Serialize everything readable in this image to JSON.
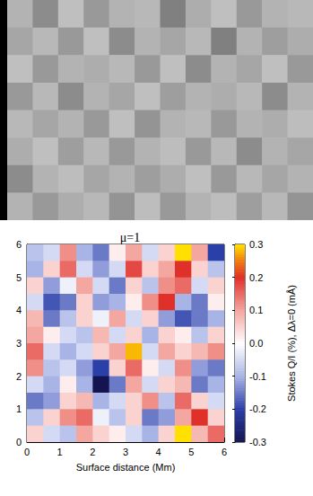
{
  "chart_data": [
    {
      "type": "image",
      "x": [
        0.5,
        1.5,
        2.5,
        3.5,
        4.5,
        5.5,
        6.5,
        7.5,
        8.5,
        9.5,
        10.5,
        11.5
      ],
      "y": [
        7.5,
        6.5,
        5.5,
        4.5,
        3.5,
        2.5,
        1.5,
        0.5
      ],
      "values": [
        [
          0.7,
          0.55,
          0.75,
          0.6,
          0.7,
          0.72,
          0.5,
          0.68,
          0.75,
          0.6,
          0.7,
          0.72
        ],
        [
          0.65,
          0.72,
          0.6,
          0.75,
          0.55,
          0.7,
          0.65,
          0.72,
          0.5,
          0.7,
          0.62,
          0.68
        ],
        [
          0.75,
          0.6,
          0.7,
          0.68,
          0.72,
          0.6,
          0.75,
          0.55,
          0.7,
          0.65,
          0.75,
          0.6
        ],
        [
          0.6,
          0.72,
          0.55,
          0.7,
          0.65,
          0.75,
          0.62,
          0.7,
          0.68,
          0.72,
          0.55,
          0.7
        ],
        [
          0.72,
          0.65,
          0.7,
          0.6,
          0.75,
          0.58,
          0.7,
          0.72,
          0.6,
          0.7,
          0.68,
          0.74
        ],
        [
          0.68,
          0.75,
          0.62,
          0.72,
          0.6,
          0.7,
          0.74,
          0.6,
          0.72,
          0.55,
          0.7,
          0.65
        ],
        [
          0.55,
          0.7,
          0.74,
          0.65,
          0.7,
          0.62,
          0.68,
          0.75,
          0.6,
          0.72,
          0.65,
          0.7
        ],
        [
          0.7,
          0.6,
          0.68,
          0.72,
          0.58,
          0.74,
          0.6,
          0.7,
          0.74,
          0.62,
          0.72,
          0.58
        ]
      ],
      "zlim": [
        0,
        1
      ],
      "xlim": [
        0,
        12
      ],
      "ylim": [
        0,
        8
      ],
      "tick_labels": false
    },
    {
      "type": "heatmap",
      "title": "μ=1",
      "x_label": "Surface distance (Mm)",
      "x": [
        0.25,
        0.75,
        1.25,
        1.75,
        2.25,
        2.75,
        3.25,
        3.75,
        4.25,
        4.75,
        5.25,
        5.75
      ],
      "y": [
        5.75,
        5.25,
        4.75,
        4.25,
        3.75,
        3.25,
        2.75,
        2.25,
        1.75,
        1.25,
        0.75,
        0.25
      ],
      "values": [
        [
          -0.08,
          -0.05,
          0.12,
          -0.1,
          -0.15,
          0.02,
          0.1,
          -0.05,
          0.05,
          0.3,
          0.1,
          -0.2
        ],
        [
          -0.1,
          0.05,
          0.15,
          -0.05,
          -0.12,
          -0.05,
          0.18,
          0.05,
          0.1,
          0.2,
          0.05,
          -0.08
        ],
        [
          0.05,
          -0.12,
          -0.02,
          0.1,
          -0.05,
          -0.15,
          0.05,
          -0.08,
          0.12,
          0.15,
          -0.05,
          0.05
        ],
        [
          -0.05,
          -0.18,
          -0.15,
          0.05,
          -0.12,
          -0.1,
          0.02,
          0.12,
          0.2,
          -0.1,
          -0.15,
          0.02
        ],
        [
          0.08,
          -0.15,
          -0.08,
          0.05,
          -0.02,
          0.1,
          -0.05,
          0.05,
          -0.12,
          -0.18,
          -0.15,
          -0.1
        ],
        [
          0.1,
          0.02,
          -0.05,
          -0.08,
          0.08,
          -0.05,
          0.05,
          -0.1,
          0.05,
          0.02,
          -0.08,
          0.05
        ],
        [
          0.15,
          -0.05,
          -0.1,
          -0.05,
          0.05,
          0.1,
          0.28,
          -0.05,
          0.1,
          0.05,
          0.08,
          0.12
        ],
        [
          0.12,
          -0.08,
          -0.05,
          -0.12,
          -0.2,
          0.05,
          0.15,
          0.02,
          -0.05,
          0.12,
          -0.12,
          -0.15
        ],
        [
          -0.05,
          -0.1,
          0.02,
          -0.1,
          -0.3,
          -0.15,
          0.1,
          -0.05,
          0.05,
          0.08,
          -0.15,
          -0.1
        ],
        [
          -0.15,
          -0.12,
          0.05,
          0.08,
          -0.1,
          -0.05,
          0.05,
          0.12,
          -0.08,
          0.15,
          0.05,
          -0.05
        ],
        [
          -0.08,
          0.05,
          0.12,
          0.15,
          -0.02,
          -0.08,
          0.05,
          -0.15,
          -0.12,
          0.1,
          0.2,
          0.05
        ],
        [
          0.05,
          -0.05,
          -0.08,
          0.1,
          0.05,
          0.02,
          -0.05,
          -0.1,
          0.05,
          0.3,
          0.08,
          0.15
        ]
      ],
      "xlim": [
        0,
        6
      ],
      "ylim": [
        0,
        6
      ],
      "xticks": [
        0,
        1,
        2,
        3,
        4,
        5,
        6
      ],
      "yticks": [
        0,
        1,
        2,
        3,
        4,
        5,
        6
      ],
      "colorbar": {
        "label": "Stokes Q/I (%), Δλ=0 (mÅ)",
        "range": [
          -0.3,
          0.3
        ],
        "ticks": [
          -0.3,
          -0.2,
          -0.1,
          {
            "value": 0,
            "label": "0.0"
          },
          0.1,
          0.2,
          0.3
        ]
      }
    }
  ]
}
